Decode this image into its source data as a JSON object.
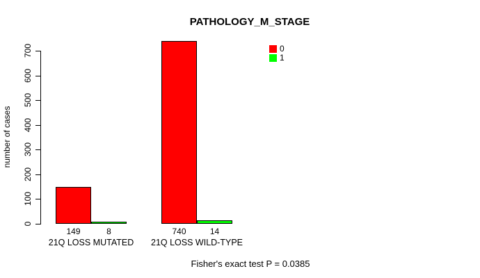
{
  "chart_data": {
    "type": "bar",
    "title": "PATHOLOGY_M_STAGE",
    "xlabel": "",
    "ylabel": "number of cases",
    "ylim": [
      0,
      700
    ],
    "yticks": [
      0,
      100,
      200,
      300,
      400,
      500,
      600,
      700
    ],
    "grid": false,
    "background": "#ffffff",
    "categories": [
      "21Q LOSS MUTATED",
      "21Q LOSS WILD-TYPE"
    ],
    "series": [
      {
        "name": "0",
        "color": "#ff0000",
        "values": [
          149,
          740
        ]
      },
      {
        "name": "1",
        "color": "#00ff00",
        "values": [
          8,
          14
        ]
      }
    ],
    "bar_count_labels": [
      [
        "149",
        "8"
      ],
      [
        "740",
        "14"
      ]
    ],
    "annotation": "Fisher's exact test P = 0.0385",
    "legend": {
      "position": "top-right",
      "entries": [
        {
          "label": "0",
          "color": "#ff0000"
        },
        {
          "label": "1",
          "color": "#00ff00"
        }
      ]
    }
  }
}
